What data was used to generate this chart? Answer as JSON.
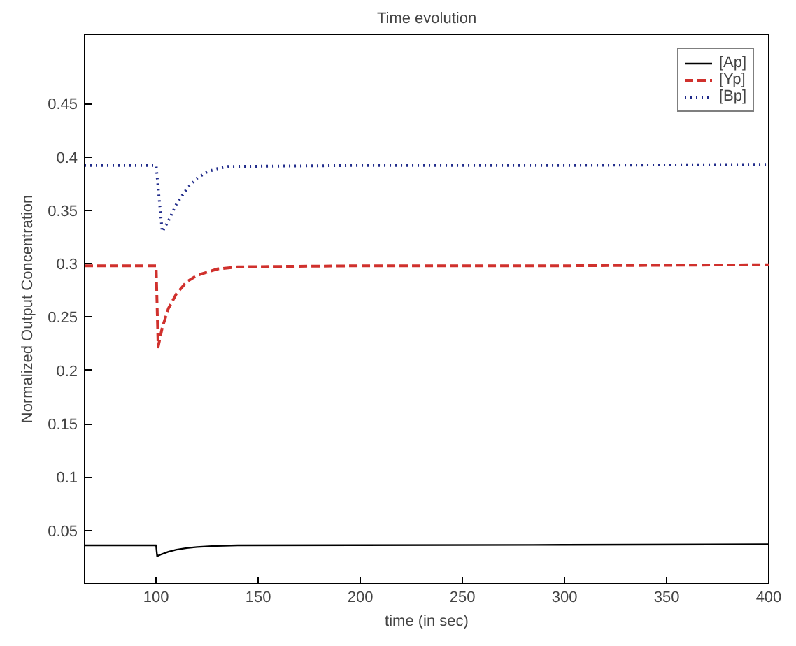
{
  "chart_data": {
    "type": "line",
    "title": "Time evolution",
    "xlabel": "time (in sec)",
    "ylabel": "Normalized Output Concentration",
    "xlim": [
      65,
      400
    ],
    "ylim": [
      0,
      0.515
    ],
    "xticks": [
      100,
      150,
      200,
      250,
      300,
      350,
      400
    ],
    "yticks": [
      0.05,
      0.1,
      0.15,
      0.2,
      0.25,
      0.3,
      0.35,
      0.4,
      0.45
    ],
    "grid": false,
    "legend": "top right",
    "marker": "none",
    "series": [
      {
        "name": "[Ap]",
        "color": "#000000",
        "line_style": "solid",
        "x": [
          65,
          100,
          100.5,
          103,
          106,
          110,
          115,
          120,
          130,
          140,
          200,
          300,
          400
        ],
        "values": [
          0.036,
          0.036,
          0.026,
          0.028,
          0.03,
          0.032,
          0.0335,
          0.0345,
          0.0355,
          0.036,
          0.0362,
          0.0365,
          0.037
        ]
      },
      {
        "name": "[Yp]",
        "color": "#d0312d",
        "line_style": "dashed",
        "x": [
          65,
          100,
          101,
          103,
          106,
          110,
          115,
          120,
          130,
          140,
          200,
          300,
          400
        ],
        "values": [
          0.298,
          0.298,
          0.222,
          0.24,
          0.258,
          0.272,
          0.283,
          0.289,
          0.295,
          0.297,
          0.298,
          0.298,
          0.299
        ]
      },
      {
        "name": "[Bp]",
        "color": "#1f2a8a",
        "line_style": "dotted",
        "x": [
          65,
          100,
          103,
          106,
          110,
          115,
          120,
          125,
          130,
          135,
          200,
          300,
          400
        ],
        "values": [
          0.392,
          0.392,
          0.33,
          0.34,
          0.356,
          0.37,
          0.38,
          0.386,
          0.389,
          0.391,
          0.392,
          0.392,
          0.393
        ]
      }
    ]
  }
}
